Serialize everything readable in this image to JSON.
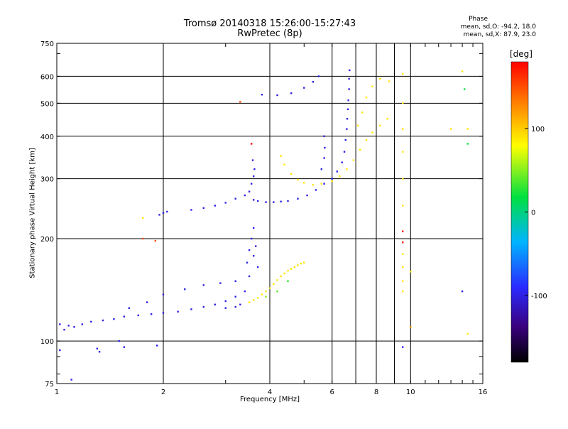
{
  "chart_data": {
    "type": "scatter",
    "title": "Tromsø 20140318 15:26:00-15:27:43",
    "subtitle": "RwPretec (8p)",
    "xlabel": "Frequency [MHz]",
    "ylabel": "Stationary phase Virtual Height [km]",
    "x_scale": "log",
    "y_scale": "log",
    "xlim": [
      1,
      16
    ],
    "ylim": [
      75,
      750
    ],
    "x_ticks": [
      1,
      2,
      4,
      6,
      8,
      10,
      16
    ],
    "x_tick_labels": [
      "1",
      "2",
      "4",
      "6",
      "8",
      "10",
      "16"
    ],
    "y_ticks": [
      75,
      100,
      200,
      300,
      400,
      500,
      600,
      750
    ],
    "y_tick_labels": [
      "75",
      "100",
      "200",
      "300",
      "400",
      "500",
      "600",
      "750"
    ],
    "grid": true,
    "phase_stats": {
      "header": "Phase",
      "line_o": "mean, sd,O: -94.2, 18.0",
      "line_x": "mean, sd,X:  87.9, 23.0"
    },
    "colorbar": {
      "label": "[deg]",
      "range": [
        -180,
        180
      ],
      "ticks": [
        100,
        0,
        -100
      ],
      "tick_labels": [
        "100",
        "0",
        "-100"
      ]
    },
    "series": [
      {
        "points": [
          [
            1.02,
            112,
            -100
          ],
          [
            1.05,
            108,
            -100
          ],
          [
            1.08,
            111,
            -100
          ],
          [
            1.12,
            110,
            -100
          ],
          [
            1.18,
            112,
            -100
          ],
          [
            1.25,
            114,
            -100
          ],
          [
            1.35,
            115,
            -100
          ],
          [
            1.45,
            116,
            -100
          ],
          [
            1.55,
            118,
            -100
          ],
          [
            1.7,
            119,
            -100
          ],
          [
            1.85,
            120,
            -100
          ],
          [
            2.0,
            121,
            -100
          ],
          [
            2.2,
            122,
            -100
          ],
          [
            2.4,
            124,
            -100
          ],
          [
            2.6,
            126,
            -100
          ],
          [
            2.8,
            128,
            -100
          ],
          [
            3.0,
            131,
            -100
          ],
          [
            3.2,
            135,
            -100
          ],
          [
            3.4,
            140,
            -100
          ],
          [
            1.6,
            125,
            -100
          ],
          [
            1.8,
            130,
            -100
          ],
          [
            2.0,
            137,
            -100
          ],
          [
            2.3,
            142,
            -100
          ],
          [
            2.6,
            146,
            -100
          ],
          [
            2.9,
            148,
            -100
          ],
          [
            3.2,
            150,
            -100
          ],
          [
            3.5,
            155,
            -100
          ],
          [
            3.45,
            170,
            -100
          ],
          [
            3.5,
            185,
            -100
          ],
          [
            3.55,
            200,
            -100
          ],
          [
            3.6,
            178,
            -100
          ],
          [
            3.65,
            190,
            -100
          ],
          [
            3.7,
            165,
            -100
          ],
          [
            3.6,
            215,
            -100
          ],
          [
            3.3,
            128,
            -100
          ],
          [
            3.2,
            126,
            -100
          ],
          [
            3.0,
            125,
            -100
          ],
          [
            1.3,
            95,
            -100
          ],
          [
            1.32,
            93,
            -100
          ],
          [
            1.1,
            77,
            -100
          ],
          [
            1.02,
            94,
            -100
          ],
          [
            1.55,
            96,
            -100
          ],
          [
            1.92,
            97,
            -100
          ],
          [
            1.5,
            100,
            -100
          ],
          [
            3.5,
            130,
            90
          ],
          [
            3.6,
            132,
            90
          ],
          [
            3.7,
            134,
            90
          ],
          [
            3.8,
            137,
            90
          ],
          [
            3.9,
            140,
            90
          ],
          [
            4.0,
            143,
            90
          ],
          [
            4.1,
            147,
            90
          ],
          [
            4.2,
            151,
            90
          ],
          [
            4.3,
            155,
            90
          ],
          [
            4.4,
            158,
            90
          ],
          [
            4.5,
            161,
            90
          ],
          [
            4.6,
            163,
            90
          ],
          [
            4.7,
            165,
            90
          ],
          [
            4.8,
            167,
            90
          ],
          [
            4.9,
            169,
            90
          ],
          [
            5.0,
            170,
            90
          ],
          [
            4.2,
            140,
            40
          ],
          [
            4.5,
            150,
            30
          ],
          [
            3.9,
            135,
            50
          ],
          [
            1.95,
            235,
            -100
          ],
          [
            2.0,
            238,
            -100
          ],
          [
            2.05,
            240,
            -100
          ],
          [
            2.4,
            243,
            -100
          ],
          [
            2.6,
            246,
            -100
          ],
          [
            2.8,
            250,
            -100
          ],
          [
            3.0,
            255,
            -100
          ],
          [
            3.2,
            262,
            -100
          ],
          [
            3.4,
            268,
            -100
          ],
          [
            3.5,
            275,
            -100
          ],
          [
            3.55,
            290,
            -100
          ],
          [
            3.6,
            305,
            -100
          ],
          [
            3.62,
            320,
            -100
          ],
          [
            3.58,
            340,
            -100
          ],
          [
            3.6,
            260,
            -100
          ],
          [
            3.7,
            258,
            -100
          ],
          [
            3.9,
            256,
            -100
          ],
          [
            4.1,
            256,
            -100
          ],
          [
            4.3,
            257,
            -100
          ],
          [
            4.5,
            258,
            -100
          ],
          [
            4.8,
            262,
            -100
          ],
          [
            5.1,
            268,
            -100
          ],
          [
            5.4,
            278,
            -100
          ],
          [
            5.7,
            290,
            -100
          ],
          [
            6.0,
            300,
            -100
          ],
          [
            6.2,
            315,
            -100
          ],
          [
            6.4,
            335,
            -100
          ],
          [
            6.5,
            360,
            -100
          ],
          [
            6.55,
            390,
            -100
          ],
          [
            6.6,
            420,
            -100
          ],
          [
            6.62,
            450,
            -100
          ],
          [
            6.65,
            480,
            -100
          ],
          [
            6.67,
            510,
            -100
          ],
          [
            6.7,
            550,
            -100
          ],
          [
            6.7,
            590,
            -100
          ],
          [
            6.72,
            625,
            -100
          ],
          [
            5.6,
            320,
            -100
          ],
          [
            5.7,
            345,
            -100
          ],
          [
            5.72,
            370,
            -100
          ],
          [
            5.7,
            400,
            -100
          ],
          [
            3.8,
            530,
            -100
          ],
          [
            4.2,
            528,
            -100
          ],
          [
            4.6,
            535,
            -100
          ],
          [
            5.0,
            555,
            -100
          ],
          [
            5.3,
            578,
            -100
          ],
          [
            5.5,
            600,
            -100
          ],
          [
            4.3,
            350,
            90
          ],
          [
            4.4,
            330,
            90
          ],
          [
            4.6,
            310,
            90
          ],
          [
            4.8,
            298,
            90
          ],
          [
            5.0,
            292,
            90
          ],
          [
            5.3,
            288,
            90
          ],
          [
            5.6,
            290,
            90
          ],
          [
            6.0,
            295,
            90
          ],
          [
            6.3,
            305,
            90
          ],
          [
            6.6,
            320,
            90
          ],
          [
            6.9,
            340,
            90
          ],
          [
            7.2,
            365,
            90
          ],
          [
            7.5,
            390,
            90
          ],
          [
            7.8,
            410,
            90
          ],
          [
            8.2,
            430,
            90
          ],
          [
            8.6,
            450,
            90
          ],
          [
            7.1,
            430,
            90
          ],
          [
            7.3,
            470,
            90
          ],
          [
            7.5,
            520,
            90
          ],
          [
            7.8,
            560,
            90
          ],
          [
            8.2,
            590,
            90
          ],
          [
            8.7,
            580,
            90
          ],
          [
            9.5,
            610,
            90
          ],
          [
            9.5,
            500,
            90
          ],
          [
            9.5,
            420,
            90
          ],
          [
            9.5,
            360,
            90
          ],
          [
            9.5,
            300,
            90
          ],
          [
            9.5,
            250,
            90
          ],
          [
            9.5,
            210,
            180
          ],
          [
            9.5,
            195,
            180
          ],
          [
            9.5,
            180,
            90
          ],
          [
            9.5,
            165,
            90
          ],
          [
            9.5,
            150,
            90
          ],
          [
            9.5,
            140,
            90
          ],
          [
            10.0,
            160,
            90
          ],
          [
            14.0,
            620,
            90
          ],
          [
            14.2,
            550,
            20
          ],
          [
            14.5,
            420,
            90
          ],
          [
            14.5,
            380,
            20
          ],
          [
            13.0,
            420,
            90
          ],
          [
            14.0,
            140,
            -100
          ],
          [
            14.5,
            105,
            90
          ],
          [
            9.5,
            96,
            -100
          ],
          [
            1.75,
            200,
            150
          ],
          [
            1.75,
            230,
            90
          ],
          [
            1.9,
            197,
            150
          ],
          [
            3.3,
            505,
            150
          ],
          [
            3.55,
            380,
            180
          ],
          [
            10.0,
            110,
            120
          ]
        ]
      }
    ]
  }
}
